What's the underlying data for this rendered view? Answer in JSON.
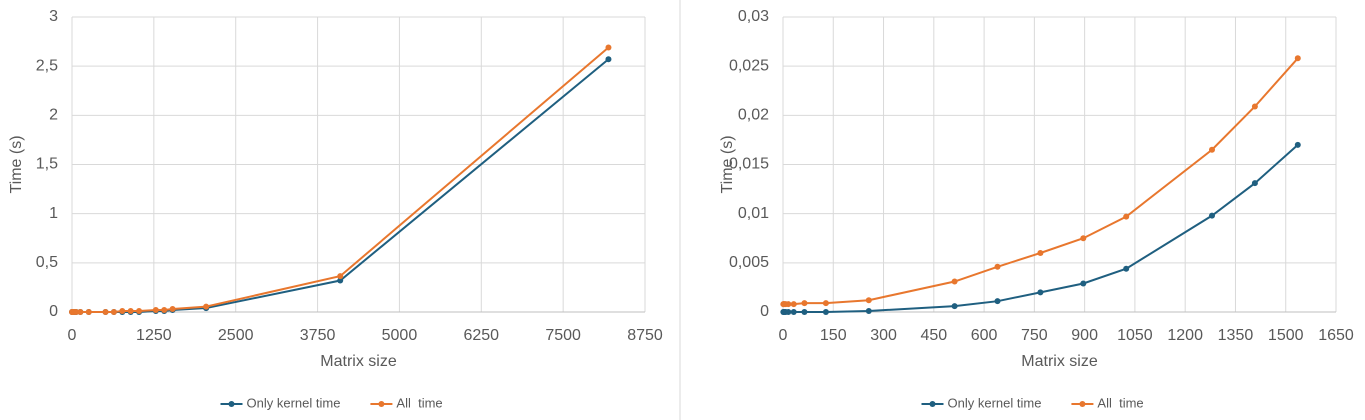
{
  "chart_data": [
    {
      "type": "line",
      "x_label": "Matrix size",
      "y_label": "Time (s)",
      "x": [
        1,
        2,
        4,
        8,
        16,
        32,
        64,
        128,
        256,
        512,
        640,
        768,
        896,
        1024,
        1280,
        1408,
        1536,
        2048,
        4096,
        8192
      ],
      "series": [
        {
          "name": "Only kernel time",
          "color": "#1f5f80",
          "values": [
            0,
            0,
            0,
            0,
            0,
            0,
            0,
            0,
            0,
            0,
            0,
            0,
            0,
            0,
            0.01,
            0.01,
            0.02,
            0.04,
            0.32,
            2.57
          ]
        },
        {
          "name": "All  time",
          "color": "#e8772e",
          "values": [
            0,
            0,
            0,
            0,
            0,
            0,
            0,
            0,
            0,
            0,
            0,
            0.01,
            0.01,
            0.01,
            0.02,
            0.02,
            0.03,
            0.055,
            0.365,
            2.69
          ]
        }
      ],
      "xlim": [
        0,
        8750
      ],
      "xticks": [
        0,
        1250,
        2500,
        3750,
        5000,
        6250,
        7500,
        8750
      ],
      "ylim": [
        0,
        3
      ],
      "yticks": [
        0,
        {
          "value": 0.5,
          "label": "0,5"
        },
        1,
        {
          "value": 1.5,
          "label": "1,5"
        },
        2,
        {
          "value": 2.5,
          "label": "2,5"
        },
        3
      ],
      "grid": true,
      "legend": "bottom"
    },
    {
      "type": "line",
      "x_label": "Matrix size",
      "y_label": "Time (s)",
      "x": [
        1,
        2,
        4,
        8,
        16,
        32,
        64,
        128,
        256,
        512,
        640,
        768,
        896,
        1024,
        1280,
        1408,
        1536
      ],
      "series": [
        {
          "name": "Only kernel time",
          "color": "#1f5f80",
          "values": [
            0,
            0,
            0,
            0,
            0,
            0,
            0,
            0,
            0.0001,
            0.0006,
            0.0011,
            0.002,
            0.0029,
            0.0044,
            0.0098,
            0.0131,
            0.017
          ]
        },
        {
          "name": "All  time",
          "color": "#e8772e",
          "values": [
            0.0008,
            0.0008,
            0.0008,
            0.0008,
            0.0008,
            0.0008,
            0.0009,
            0.0009,
            0.0012,
            0.0031,
            0.0046,
            0.006,
            0.0075,
            0.0097,
            0.0165,
            0.0209,
            0.0258
          ]
        }
      ],
      "xlim": [
        0,
        1650
      ],
      "xticks": [
        0,
        150,
        300,
        450,
        600,
        750,
        900,
        1050,
        1200,
        1350,
        1500,
        1650
      ],
      "ylim": [
        0,
        0.03
      ],
      "yticks": [
        0,
        {
          "value": 0.005,
          "label": "0,005"
        },
        {
          "value": 0.01,
          "label": "0,01"
        },
        {
          "value": 0.015,
          "label": "0,015"
        },
        {
          "value": 0.02,
          "label": "0,02"
        },
        {
          "value": 0.025,
          "label": "0,025"
        },
        {
          "value": 0.03,
          "label": "0,03"
        }
      ],
      "grid": true,
      "legend": "bottom"
    }
  ]
}
